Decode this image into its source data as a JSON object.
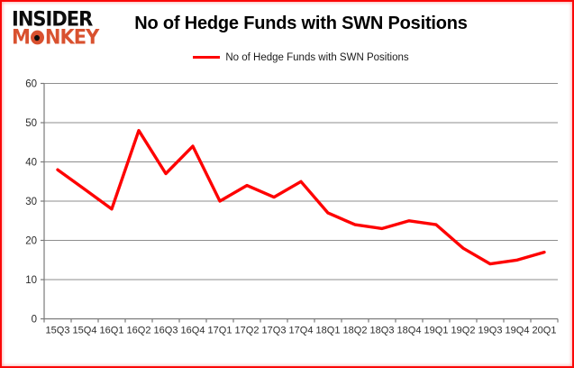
{
  "logo": {
    "line1": "INSIDER",
    "line2_pre": "M",
    "line2_post": "NKEY",
    "line2_full": "MONKEY"
  },
  "header": {
    "title": "No of Hedge Funds with SWN Positions"
  },
  "legend": {
    "label": "No of Hedge Funds with SWN Positions"
  },
  "colors": {
    "line": "#fe0101",
    "monkey_brand": "#d9512f",
    "frame_border": "#fb0707",
    "gridline": "#8e8e8e",
    "axis": "#7a7a7a",
    "tick_label": "#2b2b2b"
  },
  "chart_data": {
    "type": "line",
    "title": "No of Hedge Funds with SWN Positions",
    "legend_entries": [
      "No of Hedge Funds with SWN Positions"
    ],
    "legend_position": "top",
    "grid": true,
    "categories": [
      "15Q3",
      "15Q4",
      "16Q1",
      "16Q2",
      "16Q3",
      "16Q4",
      "17Q1",
      "17Q2",
      "17Q3",
      "17Q4",
      "18Q1",
      "18Q2",
      "18Q3",
      "18Q4",
      "19Q1",
      "19Q2",
      "19Q3",
      "19Q4",
      "20Q1"
    ],
    "series": [
      {
        "name": "No of Hedge Funds with SWN Positions",
        "values": [
          38,
          33,
          28,
          48,
          37,
          44,
          30,
          34,
          31,
          35,
          27,
          24,
          23,
          25,
          24,
          18,
          14,
          15,
          17
        ]
      }
    ],
    "xlabel": "",
    "ylabel": "",
    "ylim": [
      0,
      60
    ],
    "ytick_interval": 10,
    "yticks": [
      0,
      10,
      20,
      30,
      40,
      50,
      60
    ]
  }
}
